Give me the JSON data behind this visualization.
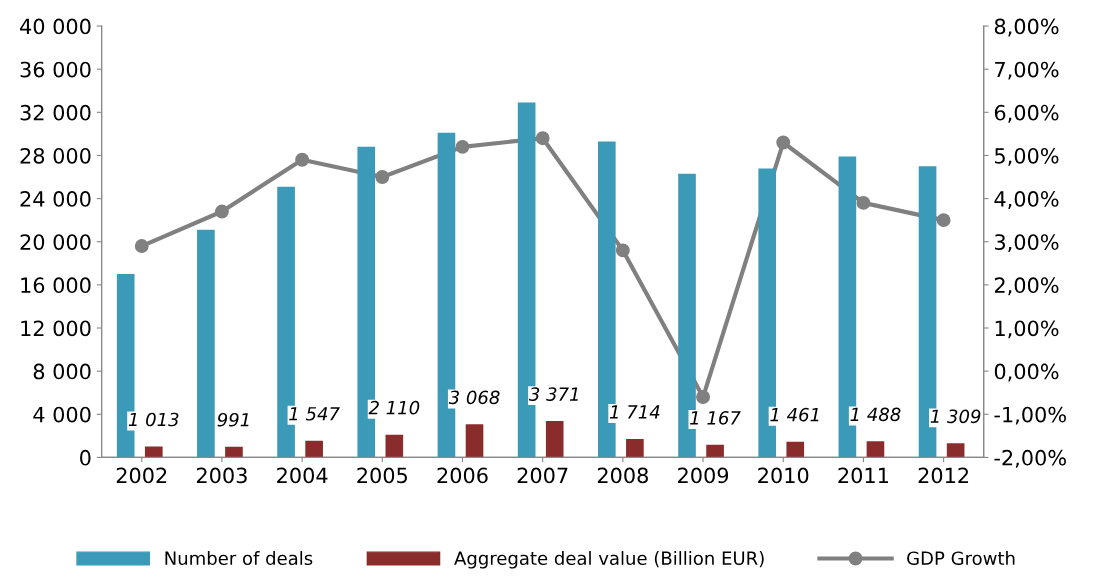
{
  "chart_data": {
    "type": "bar",
    "categories": [
      "2002",
      "2003",
      "2004",
      "2005",
      "2006",
      "2007",
      "2008",
      "2009",
      "2010",
      "2011",
      "2012"
    ],
    "series": [
      {
        "name": "Number of deals",
        "color": "#3a9ab8",
        "values": [
          17000,
          21100,
          25100,
          28800,
          30100,
          32900,
          29300,
          26300,
          26800,
          27900,
          27000
        ]
      },
      {
        "name": "Aggregate deal value (Billion EUR)",
        "color": "#8b2c2c",
        "values": [
          1013,
          991,
          1547,
          2110,
          3068,
          3371,
          1714,
          1167,
          1461,
          1488,
          1309
        ],
        "value_labels": [
          "1 013",
          "991",
          "1 547",
          "2 110",
          "3 068",
          "3 371",
          "1 714",
          "1 167",
          "1 461",
          "1 488",
          "1 309"
        ]
      },
      {
        "name": "GDP Growth",
        "type": "line",
        "axis": "y2",
        "color": "#808080",
        "marker": "circle",
        "values": [
          2.9,
          3.7,
          4.9,
          4.5,
          5.2,
          5.4,
          2.8,
          -0.6,
          5.3,
          3.9,
          3.5
        ]
      }
    ],
    "ylim": [
      0,
      40000
    ],
    "yticks": [
      {
        "value": 0,
        "label": "0"
      },
      {
        "value": 4000,
        "label": "4 000"
      },
      {
        "value": 8000,
        "label": "8 000"
      },
      {
        "value": 12000,
        "label": "12 000"
      },
      {
        "value": 16000,
        "label": "16 000"
      },
      {
        "value": 20000,
        "label": "20 000"
      },
      {
        "value": 24000,
        "label": "24 000"
      },
      {
        "value": 28000,
        "label": "28 000"
      },
      {
        "value": 32000,
        "label": "32 000"
      },
      {
        "value": 36000,
        "label": "36 000"
      },
      {
        "value": 40000,
        "label": "40 000"
      }
    ],
    "y2lim": [
      -2,
      8
    ],
    "y2ticks": [
      {
        "value": -2,
        "label": "-2,00%"
      },
      {
        "value": -1,
        "label": "-1,00%"
      },
      {
        "value": 0,
        "label": "0,00%"
      },
      {
        "value": 1,
        "label": "1,00%"
      },
      {
        "value": 2,
        "label": "2,00%"
      },
      {
        "value": 3,
        "label": "3,00%"
      },
      {
        "value": 4,
        "label": "4,00%"
      },
      {
        "value": 5,
        "label": "5,00%"
      },
      {
        "value": 6,
        "label": "6,00%"
      },
      {
        "value": 7,
        "label": "7,00%"
      },
      {
        "value": 8,
        "label": "8,00%"
      }
    ],
    "grid": false,
    "legend": "bottom"
  }
}
